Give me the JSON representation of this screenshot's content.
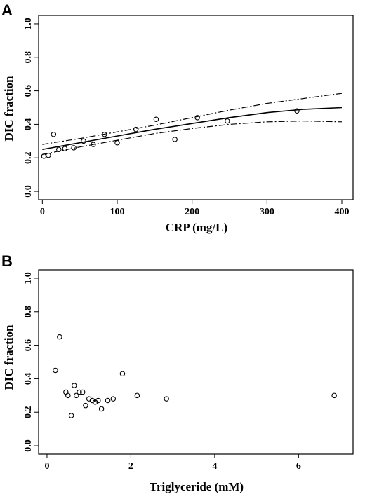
{
  "chart_data": [
    {
      "panel_label": "A",
      "type": "scatter",
      "xlabel": "CRP (mg/L)",
      "ylabel": "DIC fraction",
      "xlim": [
        -5,
        415
      ],
      "ylim": [
        -0.05,
        1.05
      ],
      "xticks": [
        0,
        100,
        200,
        300,
        400
      ],
      "yticks": [
        0.0,
        0.2,
        0.4,
        0.6,
        0.8,
        1.0
      ],
      "grid": false,
      "legend": "none",
      "points": [
        {
          "x": 2,
          "y": 0.21
        },
        {
          "x": 8,
          "y": 0.215
        },
        {
          "x": 15,
          "y": 0.34
        },
        {
          "x": 22,
          "y": 0.25
        },
        {
          "x": 30,
          "y": 0.255
        },
        {
          "x": 42,
          "y": 0.26
        },
        {
          "x": 55,
          "y": 0.3
        },
        {
          "x": 68,
          "y": 0.28
        },
        {
          "x": 83,
          "y": 0.34
        },
        {
          "x": 100,
          "y": 0.29
        },
        {
          "x": 125,
          "y": 0.37
        },
        {
          "x": 152,
          "y": 0.43
        },
        {
          "x": 177,
          "y": 0.31
        },
        {
          "x": 207,
          "y": 0.44
        },
        {
          "x": 247,
          "y": 0.42
        },
        {
          "x": 340,
          "y": 0.48
        }
      ],
      "fit_line": {
        "x": [
          0,
          50,
          100,
          150,
          200,
          250,
          300,
          350,
          400
        ],
        "y": [
          0.25,
          0.29,
          0.33,
          0.37,
          0.405,
          0.44,
          0.47,
          0.49,
          0.5
        ]
      },
      "ci_upper": {
        "x": [
          0,
          50,
          100,
          150,
          200,
          250,
          300,
          350,
          400
        ],
        "y": [
          0.28,
          0.315,
          0.355,
          0.395,
          0.44,
          0.485,
          0.525,
          0.555,
          0.585
        ]
      },
      "ci_lower": {
        "x": [
          0,
          50,
          100,
          150,
          200,
          250,
          300,
          350,
          400
        ],
        "y": [
          0.22,
          0.265,
          0.305,
          0.345,
          0.375,
          0.4,
          0.415,
          0.42,
          0.415
        ]
      }
    },
    {
      "panel_label": "B",
      "type": "scatter",
      "xlabel": "Triglyceride (mM)",
      "ylabel": "DIC  fraction",
      "xlim": [
        -0.2,
        7.3
      ],
      "ylim": [
        -0.05,
        1.05
      ],
      "xticks": [
        0,
        2,
        4,
        6
      ],
      "yticks": [
        0.0,
        0.2,
        0.4,
        0.6,
        0.8,
        1.0
      ],
      "grid": false,
      "legend": "none",
      "points": [
        {
          "x": 0.2,
          "y": 0.45
        },
        {
          "x": 0.3,
          "y": 0.65
        },
        {
          "x": 0.45,
          "y": 0.32
        },
        {
          "x": 0.5,
          "y": 0.3
        },
        {
          "x": 0.58,
          "y": 0.18
        },
        {
          "x": 0.65,
          "y": 0.36
        },
        {
          "x": 0.7,
          "y": 0.3
        },
        {
          "x": 0.77,
          "y": 0.32
        },
        {
          "x": 0.85,
          "y": 0.32
        },
        {
          "x": 0.92,
          "y": 0.24
        },
        {
          "x": 1.0,
          "y": 0.28
        },
        {
          "x": 1.08,
          "y": 0.27
        },
        {
          "x": 1.15,
          "y": 0.26
        },
        {
          "x": 1.22,
          "y": 0.27
        },
        {
          "x": 1.3,
          "y": 0.22
        },
        {
          "x": 1.45,
          "y": 0.27
        },
        {
          "x": 1.58,
          "y": 0.28
        },
        {
          "x": 1.8,
          "y": 0.43
        },
        {
          "x": 2.15,
          "y": 0.3
        },
        {
          "x": 2.85,
          "y": 0.28
        },
        {
          "x": 6.85,
          "y": 0.3
        }
      ]
    }
  ]
}
